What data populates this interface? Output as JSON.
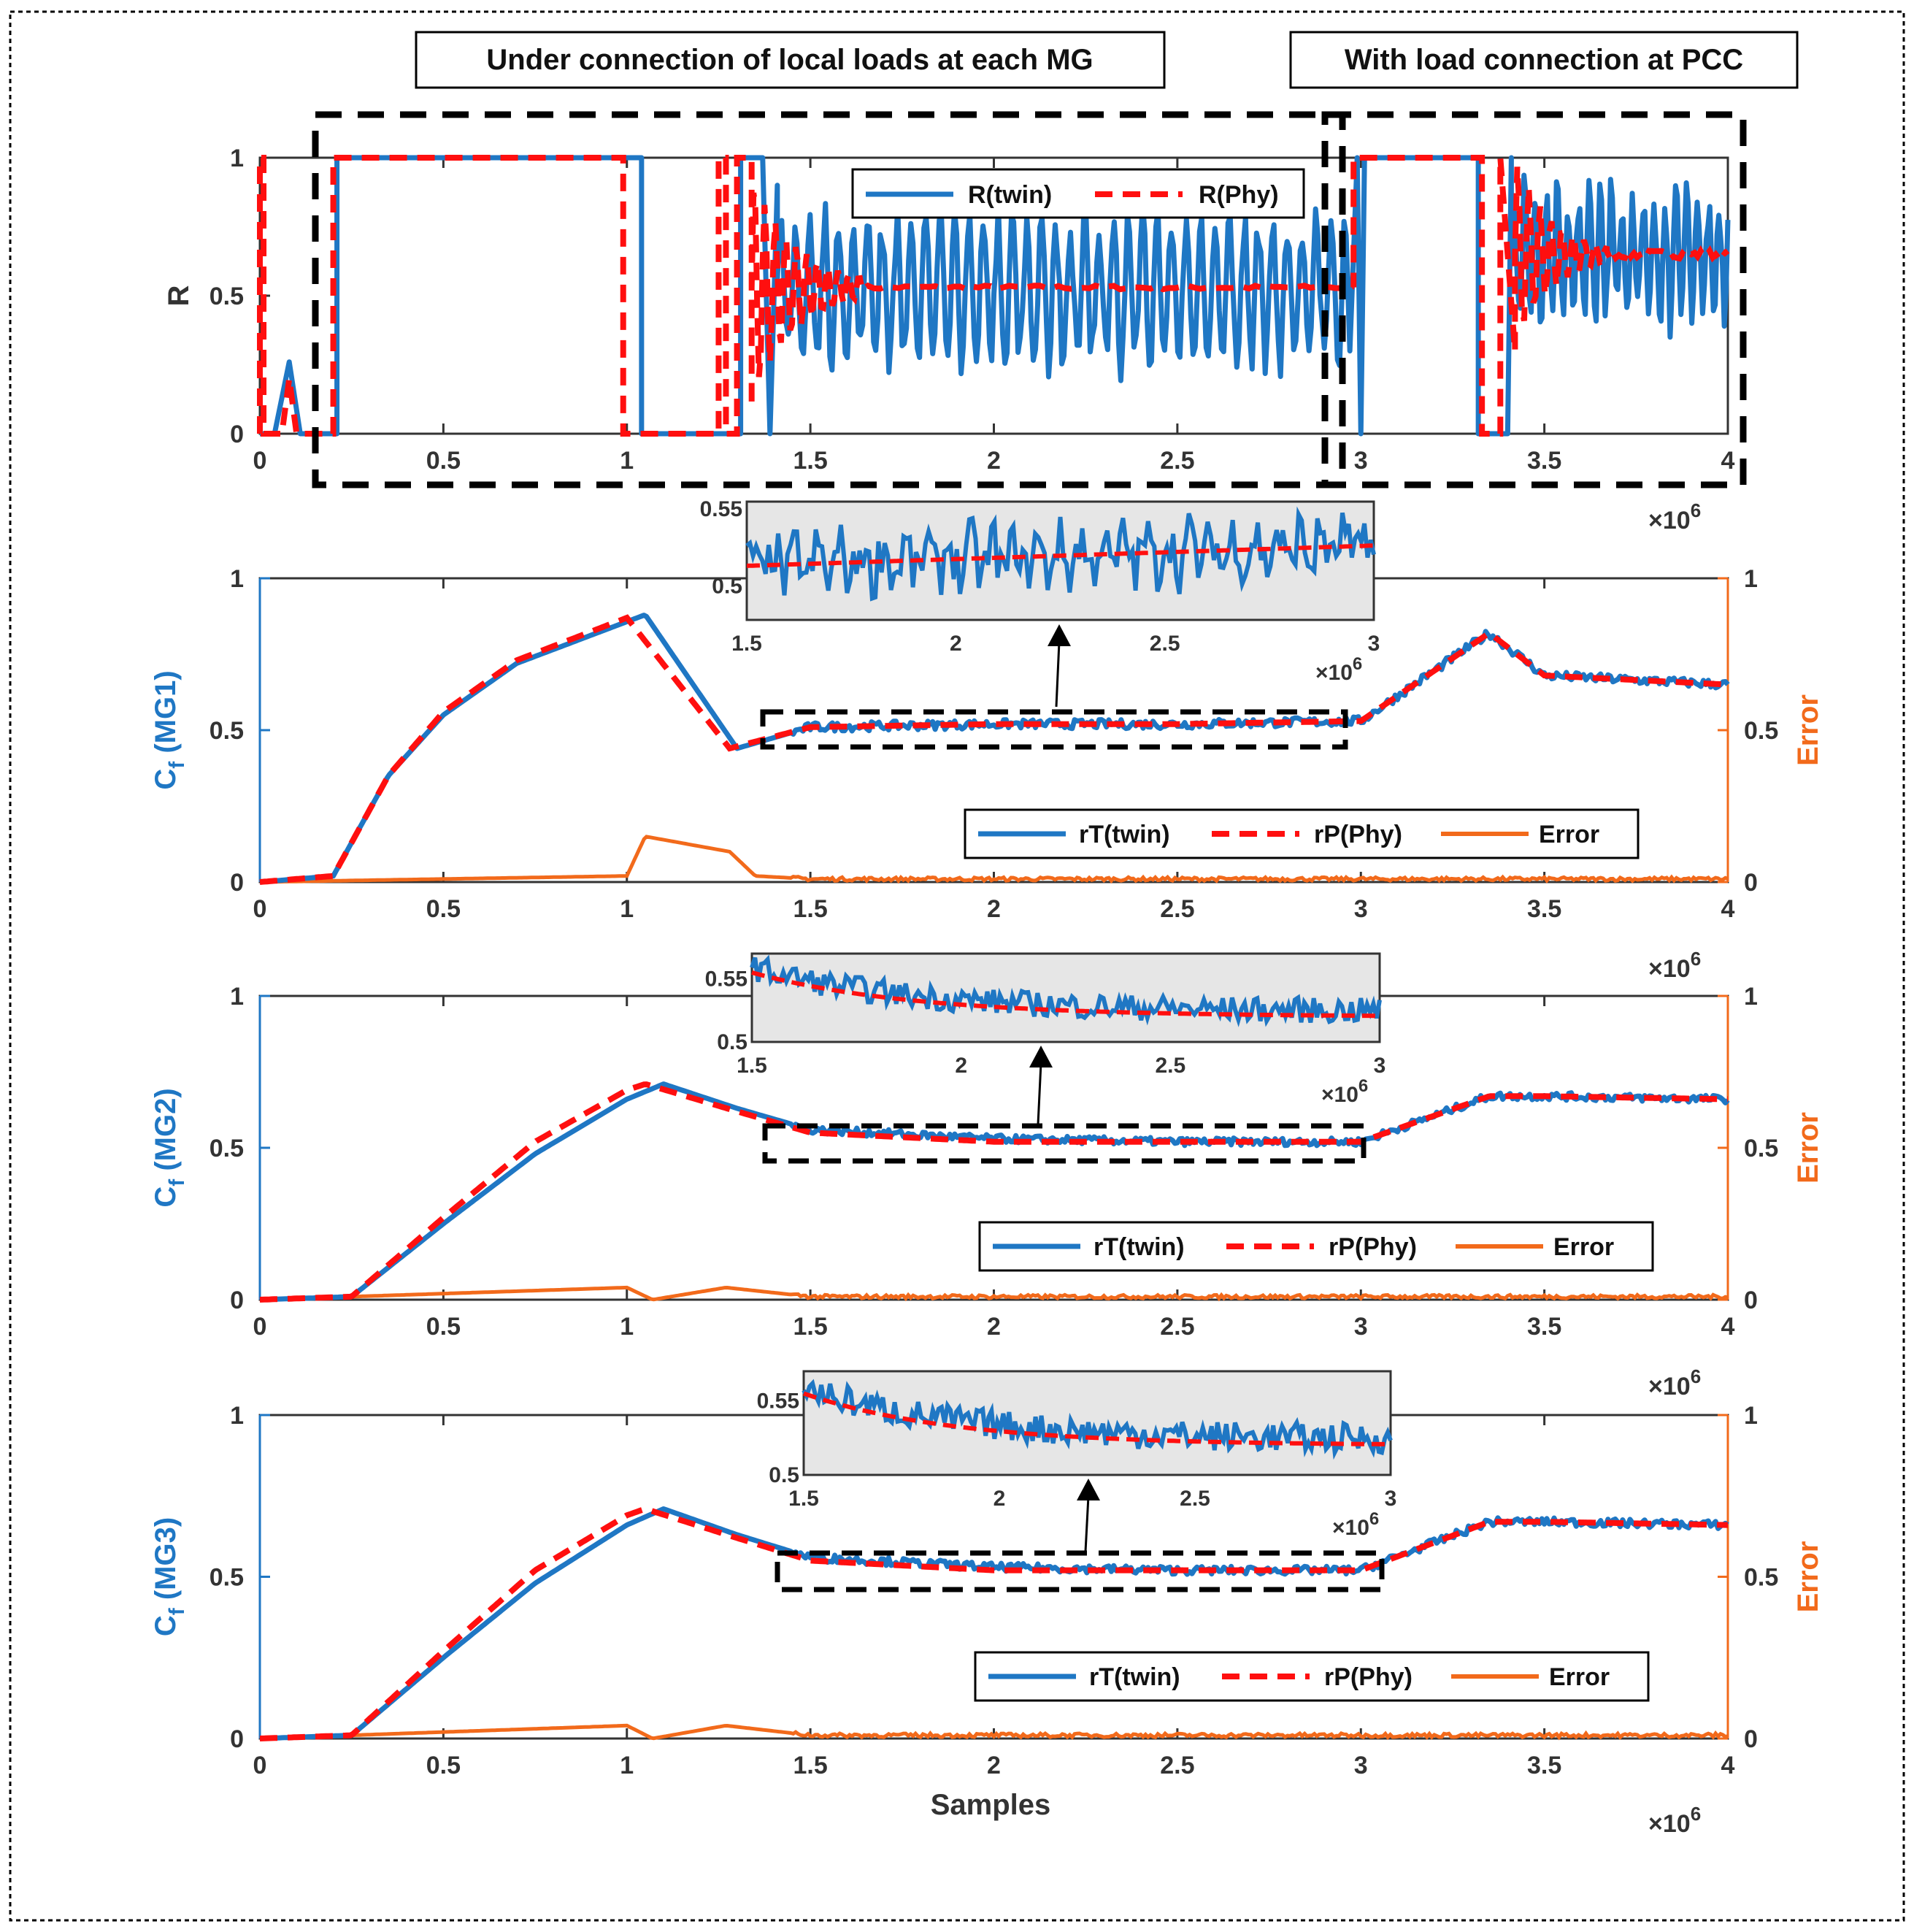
{
  "colors": {
    "twin": "#1f77c4",
    "phy": "#ff0f0f",
    "error": "#f26a1b",
    "axis": "#333333",
    "inset_bg": "#e6e6e6",
    "dash_box": "#000000"
  },
  "annotations": {
    "left_box": "Under connection of local loads at each MG",
    "right_box": "With load connection at PCC"
  },
  "chart_data": [
    {
      "id": "R",
      "type": "line",
      "ylabel": "R",
      "xlim": [
        0,
        4000000
      ],
      "ylim": [
        0,
        1
      ],
      "xticks": [
        0,
        0.5,
        1,
        1.5,
        2,
        2.5,
        3,
        3.5,
        4
      ],
      "yticks": [
        0,
        0.5,
        1
      ],
      "x_exponent": "×10",
      "x_exponent_sup": "6",
      "legend": [
        "R(twin)",
        "R(Phy)"
      ],
      "legend_position": "top-right",
      "series": [
        {
          "name": "R(twin)",
          "description": "switches 0→1 at ~0.2e6, drops to 0 at ~1.05e6, oscillates 0.2–0.85 after 1.35e6, drops near 3e6 and oscillates ~0.35–0.95 until 4e6"
        },
        {
          "name": "R(Phy)",
          "description": "same switching pattern; settles to ~0.53 from 1.5e6 to 3e6, settles to ~0.65 after 3.6e6"
        }
      ]
    },
    {
      "id": "MG1",
      "type": "line",
      "ylabel": "C",
      "ylabel_sub": "f",
      "ylabel_suffix": " (MG1)",
      "y2label": "Error",
      "xlim": [
        0,
        4000000
      ],
      "ylim": [
        0,
        1
      ],
      "y2lim": [
        0,
        1
      ],
      "xticks": [
        0,
        0.5,
        1,
        1.5,
        2,
        2.5,
        3,
        3.5,
        4
      ],
      "yticks": [
        0,
        0.5,
        1
      ],
      "x_exponent": "×10",
      "x_exponent_sup": "6",
      "legend": [
        "rT(twin)",
        "rP(Phy)",
        "Error"
      ],
      "legend_position": "bottom-right",
      "series": [
        {
          "name": "rT(twin)",
          "x": [
            0,
            0.2,
            0.35,
            0.5,
            0.7,
            1.05,
            1.3,
            1.5,
            2.0,
            2.5,
            3.0,
            3.35,
            3.5,
            4.0
          ],
          "y": [
            0,
            0.02,
            0.35,
            0.55,
            0.72,
            0.88,
            0.44,
            0.51,
            0.52,
            0.52,
            0.53,
            0.82,
            0.68,
            0.65
          ]
        },
        {
          "name": "rP(Phy)",
          "x": [
            0,
            0.2,
            0.35,
            0.5,
            0.7,
            1.0,
            1.28,
            1.5,
            2.0,
            2.5,
            3.0,
            3.35,
            3.5,
            4.0
          ],
          "y": [
            0,
            0.02,
            0.35,
            0.56,
            0.73,
            0.87,
            0.44,
            0.51,
            0.52,
            0.52,
            0.53,
            0.82,
            0.68,
            0.65
          ]
        },
        {
          "name": "Error",
          "x": [
            0,
            1.0,
            1.05,
            1.28,
            1.35,
            1.5,
            4.0
          ],
          "y": [
            0,
            0.02,
            0.15,
            0.1,
            0.02,
            0.01,
            0.01
          ]
        }
      ],
      "inset": {
        "xlim": [
          1.5,
          3
        ],
        "ylim": [
          0.48,
          0.55
        ],
        "xticks": [
          1.5,
          2,
          2.5,
          3
        ],
        "yticks": [
          0.5,
          0.55
        ],
        "x_exponent": "×10",
        "x_exponent_sup": "6"
      }
    },
    {
      "id": "MG2",
      "type": "line",
      "ylabel": "C",
      "ylabel_sub": "f",
      "ylabel_suffix": " (MG2)",
      "y2label": "Error",
      "xlim": [
        0,
        4000000
      ],
      "ylim": [
        0,
        1
      ],
      "y2lim": [
        0,
        1
      ],
      "xticks": [
        0,
        0.5,
        1,
        1.5,
        2,
        2.5,
        3,
        3.5,
        4
      ],
      "yticks": [
        0,
        0.5,
        1
      ],
      "x_exponent": "×10",
      "x_exponent_sup": "6",
      "legend": [
        "rT(twin)",
        "rP(Phy)",
        "Error"
      ],
      "legend_position": "bottom-right",
      "series": [
        {
          "name": "rT(twin)",
          "x": [
            0,
            0.25,
            0.5,
            0.75,
            1.0,
            1.1,
            1.3,
            1.5,
            2.0,
            2.5,
            3.0,
            3.35,
            3.5,
            4.0
          ],
          "y": [
            0,
            0.01,
            0.25,
            0.48,
            0.66,
            0.71,
            0.63,
            0.56,
            0.53,
            0.52,
            0.52,
            0.67,
            0.67,
            0.66
          ]
        },
        {
          "name": "rP(Phy)",
          "x": [
            0,
            0.25,
            0.5,
            0.75,
            1.0,
            1.05,
            1.3,
            1.5,
            2.0,
            2.5,
            3.0,
            3.35,
            3.5,
            4.0
          ],
          "y": [
            0,
            0.01,
            0.27,
            0.52,
            0.69,
            0.71,
            0.62,
            0.55,
            0.52,
            0.52,
            0.52,
            0.67,
            0.67,
            0.66
          ]
        },
        {
          "name": "Error",
          "x": [
            0,
            1.0,
            1.07,
            1.27,
            1.5,
            4.0
          ],
          "y": [
            0,
            0.04,
            0.0,
            0.04,
            0.01,
            0.01
          ]
        }
      ],
      "inset": {
        "xlim": [
          1.5,
          3
        ],
        "ylim": [
          0.5,
          0.57
        ],
        "xticks": [
          1.5,
          2,
          2.5,
          3
        ],
        "yticks": [
          0.5,
          0.55
        ],
        "x_exponent": "×10",
        "x_exponent_sup": "6"
      }
    },
    {
      "id": "MG3",
      "type": "line",
      "ylabel": "C",
      "ylabel_sub": "f",
      "ylabel_suffix": " (MG3)",
      "y2label": "Error",
      "xlim": [
        0,
        4000000
      ],
      "ylim": [
        0,
        1
      ],
      "y2lim": [
        0,
        1
      ],
      "xticks": [
        0,
        0.5,
        1,
        1.5,
        2,
        2.5,
        3,
        3.5,
        4
      ],
      "yticks": [
        0,
        0.5,
        1
      ],
      "x_exponent": "×10",
      "x_exponent_sup": "6",
      "xlabel": "Samples",
      "legend": [
        "rT(twin)",
        "rP(Phy)",
        "Error"
      ],
      "legend_position": "bottom-right",
      "series": [
        {
          "name": "rT(twin)",
          "x": [
            0,
            0.25,
            0.5,
            0.75,
            1.0,
            1.1,
            1.3,
            1.5,
            2.0,
            2.5,
            3.0,
            3.35,
            3.5,
            4.0
          ],
          "y": [
            0,
            0.01,
            0.25,
            0.48,
            0.66,
            0.71,
            0.63,
            0.56,
            0.53,
            0.52,
            0.52,
            0.67,
            0.67,
            0.66
          ]
        },
        {
          "name": "rP(Phy)",
          "x": [
            0,
            0.25,
            0.5,
            0.75,
            1.0,
            1.05,
            1.3,
            1.5,
            2.0,
            2.5,
            3.0,
            3.35,
            3.5,
            4.0
          ],
          "y": [
            0,
            0.01,
            0.27,
            0.52,
            0.69,
            0.71,
            0.62,
            0.55,
            0.52,
            0.52,
            0.52,
            0.67,
            0.67,
            0.66
          ]
        },
        {
          "name": "Error",
          "x": [
            0,
            1.0,
            1.07,
            1.27,
            1.5,
            4.0
          ],
          "y": [
            0,
            0.04,
            0.0,
            0.04,
            0.01,
            0.01
          ]
        }
      ],
      "inset": {
        "xlim": [
          1.5,
          3
        ],
        "ylim": [
          0.5,
          0.57
        ],
        "xticks": [
          1.5,
          2,
          2.5,
          3
        ],
        "yticks": [
          0.5,
          0.55
        ],
        "x_exponent": "×10",
        "x_exponent_sup": "6"
      }
    }
  ]
}
